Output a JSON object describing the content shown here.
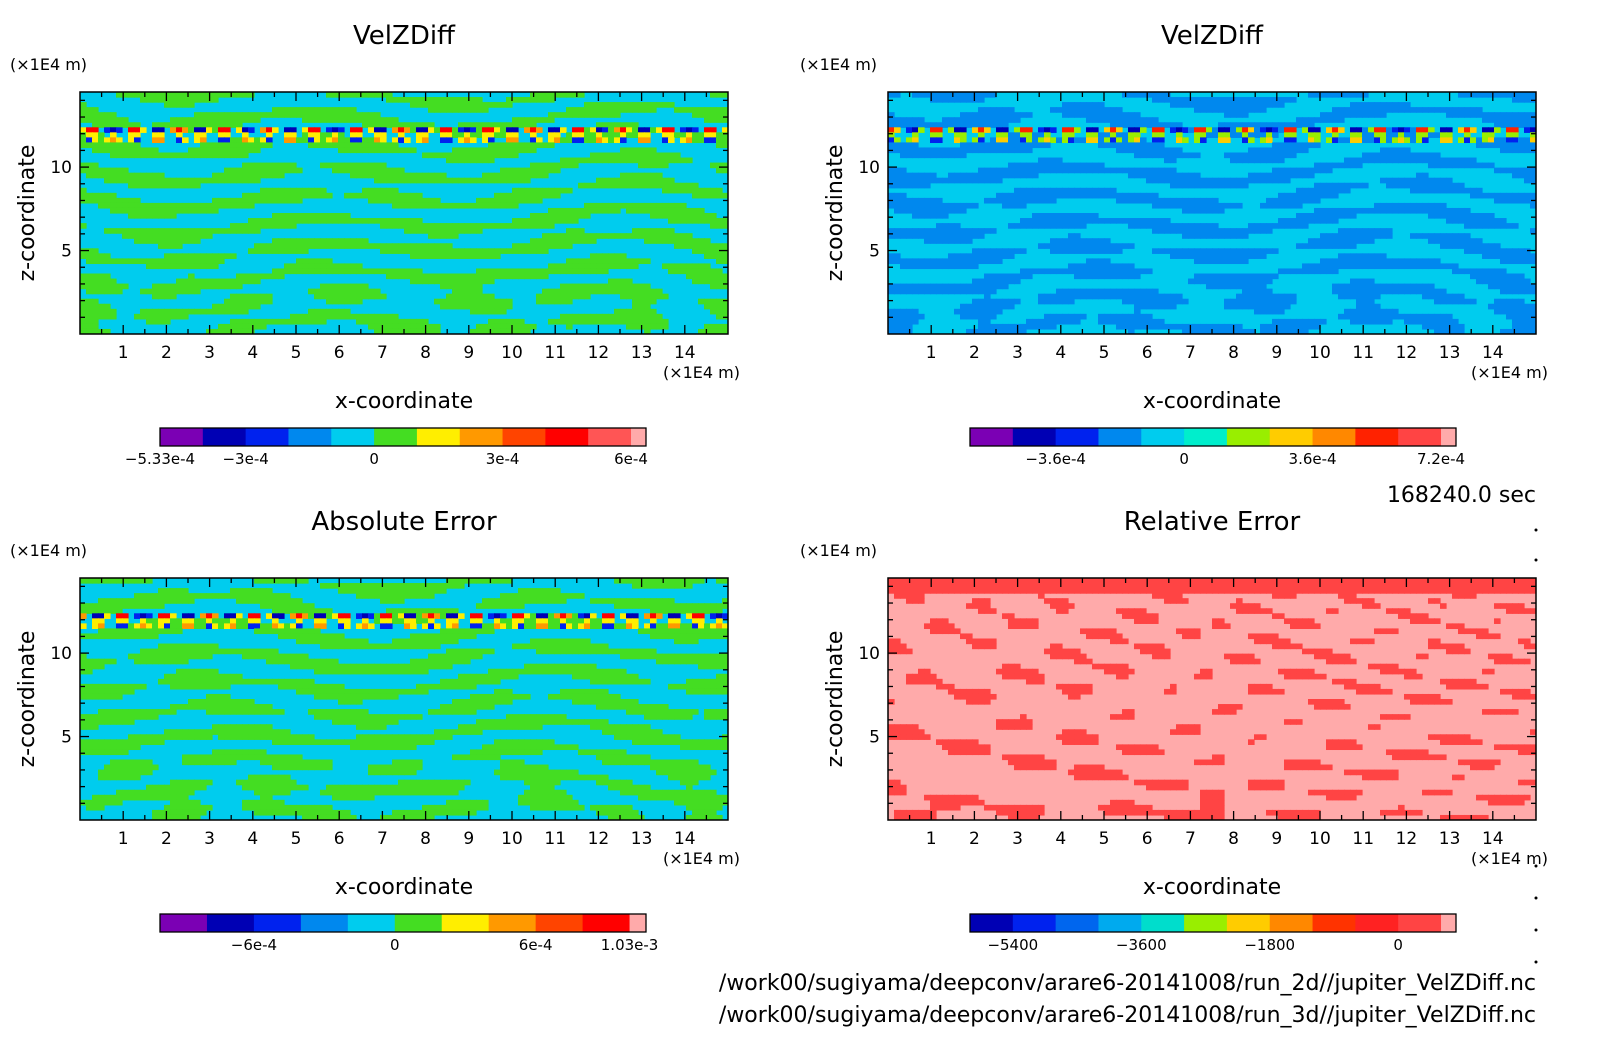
{
  "chart_data": [
    {
      "type": "heatmap",
      "title": "VelZDiff",
      "xlabel": "x-coordinate",
      "ylabel": "z-coordinate",
      "x_unit": "(×1E4 m)",
      "y_unit": "(×1E4 m)",
      "xlim": [
        0,
        15
      ],
      "ylim": [
        0,
        14.5
      ],
      "xticks": [
        "1",
        "2",
        "3",
        "4",
        "5",
        "6",
        "7",
        "8",
        "9",
        "10",
        "11",
        "12",
        "13",
        "14"
      ],
      "yticks": [
        "5",
        "10"
      ],
      "pattern": "waves",
      "palette": [
        "#7b00b4",
        "#0000b4",
        "#0022ee",
        "#0088ee",
        "#00ccee",
        "#44dd22",
        "#ffee00",
        "#ff9900",
        "#ff4400",
        "#ff0000",
        "#ff5555",
        "#ffaaaa"
      ],
      "colorbar_levels": 11,
      "colorbar_labels": [
        {
          "text": "−5.33e-4",
          "level": 0
        },
        {
          "text": "−3e-4",
          "level": 2
        },
        {
          "text": "0",
          "level": 5
        },
        {
          "text": "3e-4",
          "level": 8
        },
        {
          "text": "6e-4",
          "level": 11
        }
      ]
    },
    {
      "type": "heatmap",
      "title": "VelZDiff",
      "xlabel": "x-coordinate",
      "ylabel": "z-coordinate",
      "x_unit": "(×1E4 m)",
      "y_unit": "(×1E4 m)",
      "xlim": [
        0,
        15
      ],
      "ylim": [
        0,
        14.5
      ],
      "xticks": [
        "1",
        "2",
        "3",
        "4",
        "5",
        "6",
        "7",
        "8",
        "9",
        "10",
        "11",
        "12",
        "13",
        "14"
      ],
      "yticks": [
        "5",
        "10"
      ],
      "pattern": "waves-blue",
      "palette": [
        "#7b00b4",
        "#0000b4",
        "#0022ee",
        "#0088ee",
        "#00ccee",
        "#00eecc",
        "#99ee00",
        "#ffcc00",
        "#ff8800",
        "#ff2200",
        "#ff4444",
        "#ffaaaa"
      ],
      "colorbar_levels": 11,
      "colorbar_labels": [
        {
          "text": "−3.6e-4",
          "level": 2
        },
        {
          "text": "0",
          "level": 5
        },
        {
          "text": "3.6e-4",
          "level": 8
        },
        {
          "text": "7.2e-4",
          "level": 11
        }
      ]
    },
    {
      "type": "heatmap",
      "title": "Absolute Error",
      "xlabel": "x-coordinate",
      "ylabel": "z-coordinate",
      "x_unit": "(×1E4 m)",
      "y_unit": "(×1E4 m)",
      "xlim": [
        0,
        15
      ],
      "ylim": [
        0,
        14.5
      ],
      "xticks": [
        "1",
        "2",
        "3",
        "4",
        "5",
        "6",
        "7",
        "8",
        "9",
        "10",
        "11",
        "12",
        "13",
        "14"
      ],
      "yticks": [
        "5",
        "10"
      ],
      "pattern": "waves",
      "palette": [
        "#7b00b4",
        "#0000b4",
        "#0022ee",
        "#0088ee",
        "#00ccee",
        "#44dd22",
        "#ffee00",
        "#ff9900",
        "#ff4400",
        "#ff0000",
        "#ff3333",
        "#ffaaaa"
      ],
      "colorbar_levels": 10,
      "colorbar_labels": [
        {
          "text": "−6e-4",
          "level": 2
        },
        {
          "text": "0",
          "level": 5
        },
        {
          "text": "6e-4",
          "level": 8
        },
        {
          "text": "1.03e-3",
          "level": 10
        }
      ]
    },
    {
      "type": "heatmap",
      "title": "Relative Error",
      "xlabel": "x-coordinate",
      "ylabel": "z-coordinate",
      "x_unit": "(×1E4 m)",
      "y_unit": "(×1E4 m)",
      "xlim": [
        0,
        15
      ],
      "ylim": [
        0,
        14.5
      ],
      "xticks": [
        "1",
        "2",
        "3",
        "4",
        "5",
        "6",
        "7",
        "8",
        "9",
        "10",
        "11",
        "12",
        "13",
        "14"
      ],
      "yticks": [
        "5",
        "10"
      ],
      "pattern": "relative",
      "palette": [
        "#0000b4",
        "#0022ee",
        "#0066ee",
        "#00aaee",
        "#00ddcc",
        "#99ee00",
        "#ffcc00",
        "#ff8800",
        "#ff3300",
        "#ff2222",
        "#ff4444",
        "#ffaaaa"
      ],
      "colorbar_levels": 11,
      "colorbar_labels": [
        {
          "text": "−5400",
          "level": 1
        },
        {
          "text": "−3600",
          "level": 4
        },
        {
          "text": "−1800",
          "level": 7
        },
        {
          "text": "0",
          "level": 10
        }
      ]
    }
  ],
  "timestamp": "168240.0 sec",
  "file_paths": [
    "/work00/sugiyama/deepconv/arare6-20141008/run_2d//jupiter_VelZDiff.nc",
    "/work00/sugiyama/deepconv/arare6-20141008/run_3d//jupiter_VelZDiff.nc"
  ]
}
